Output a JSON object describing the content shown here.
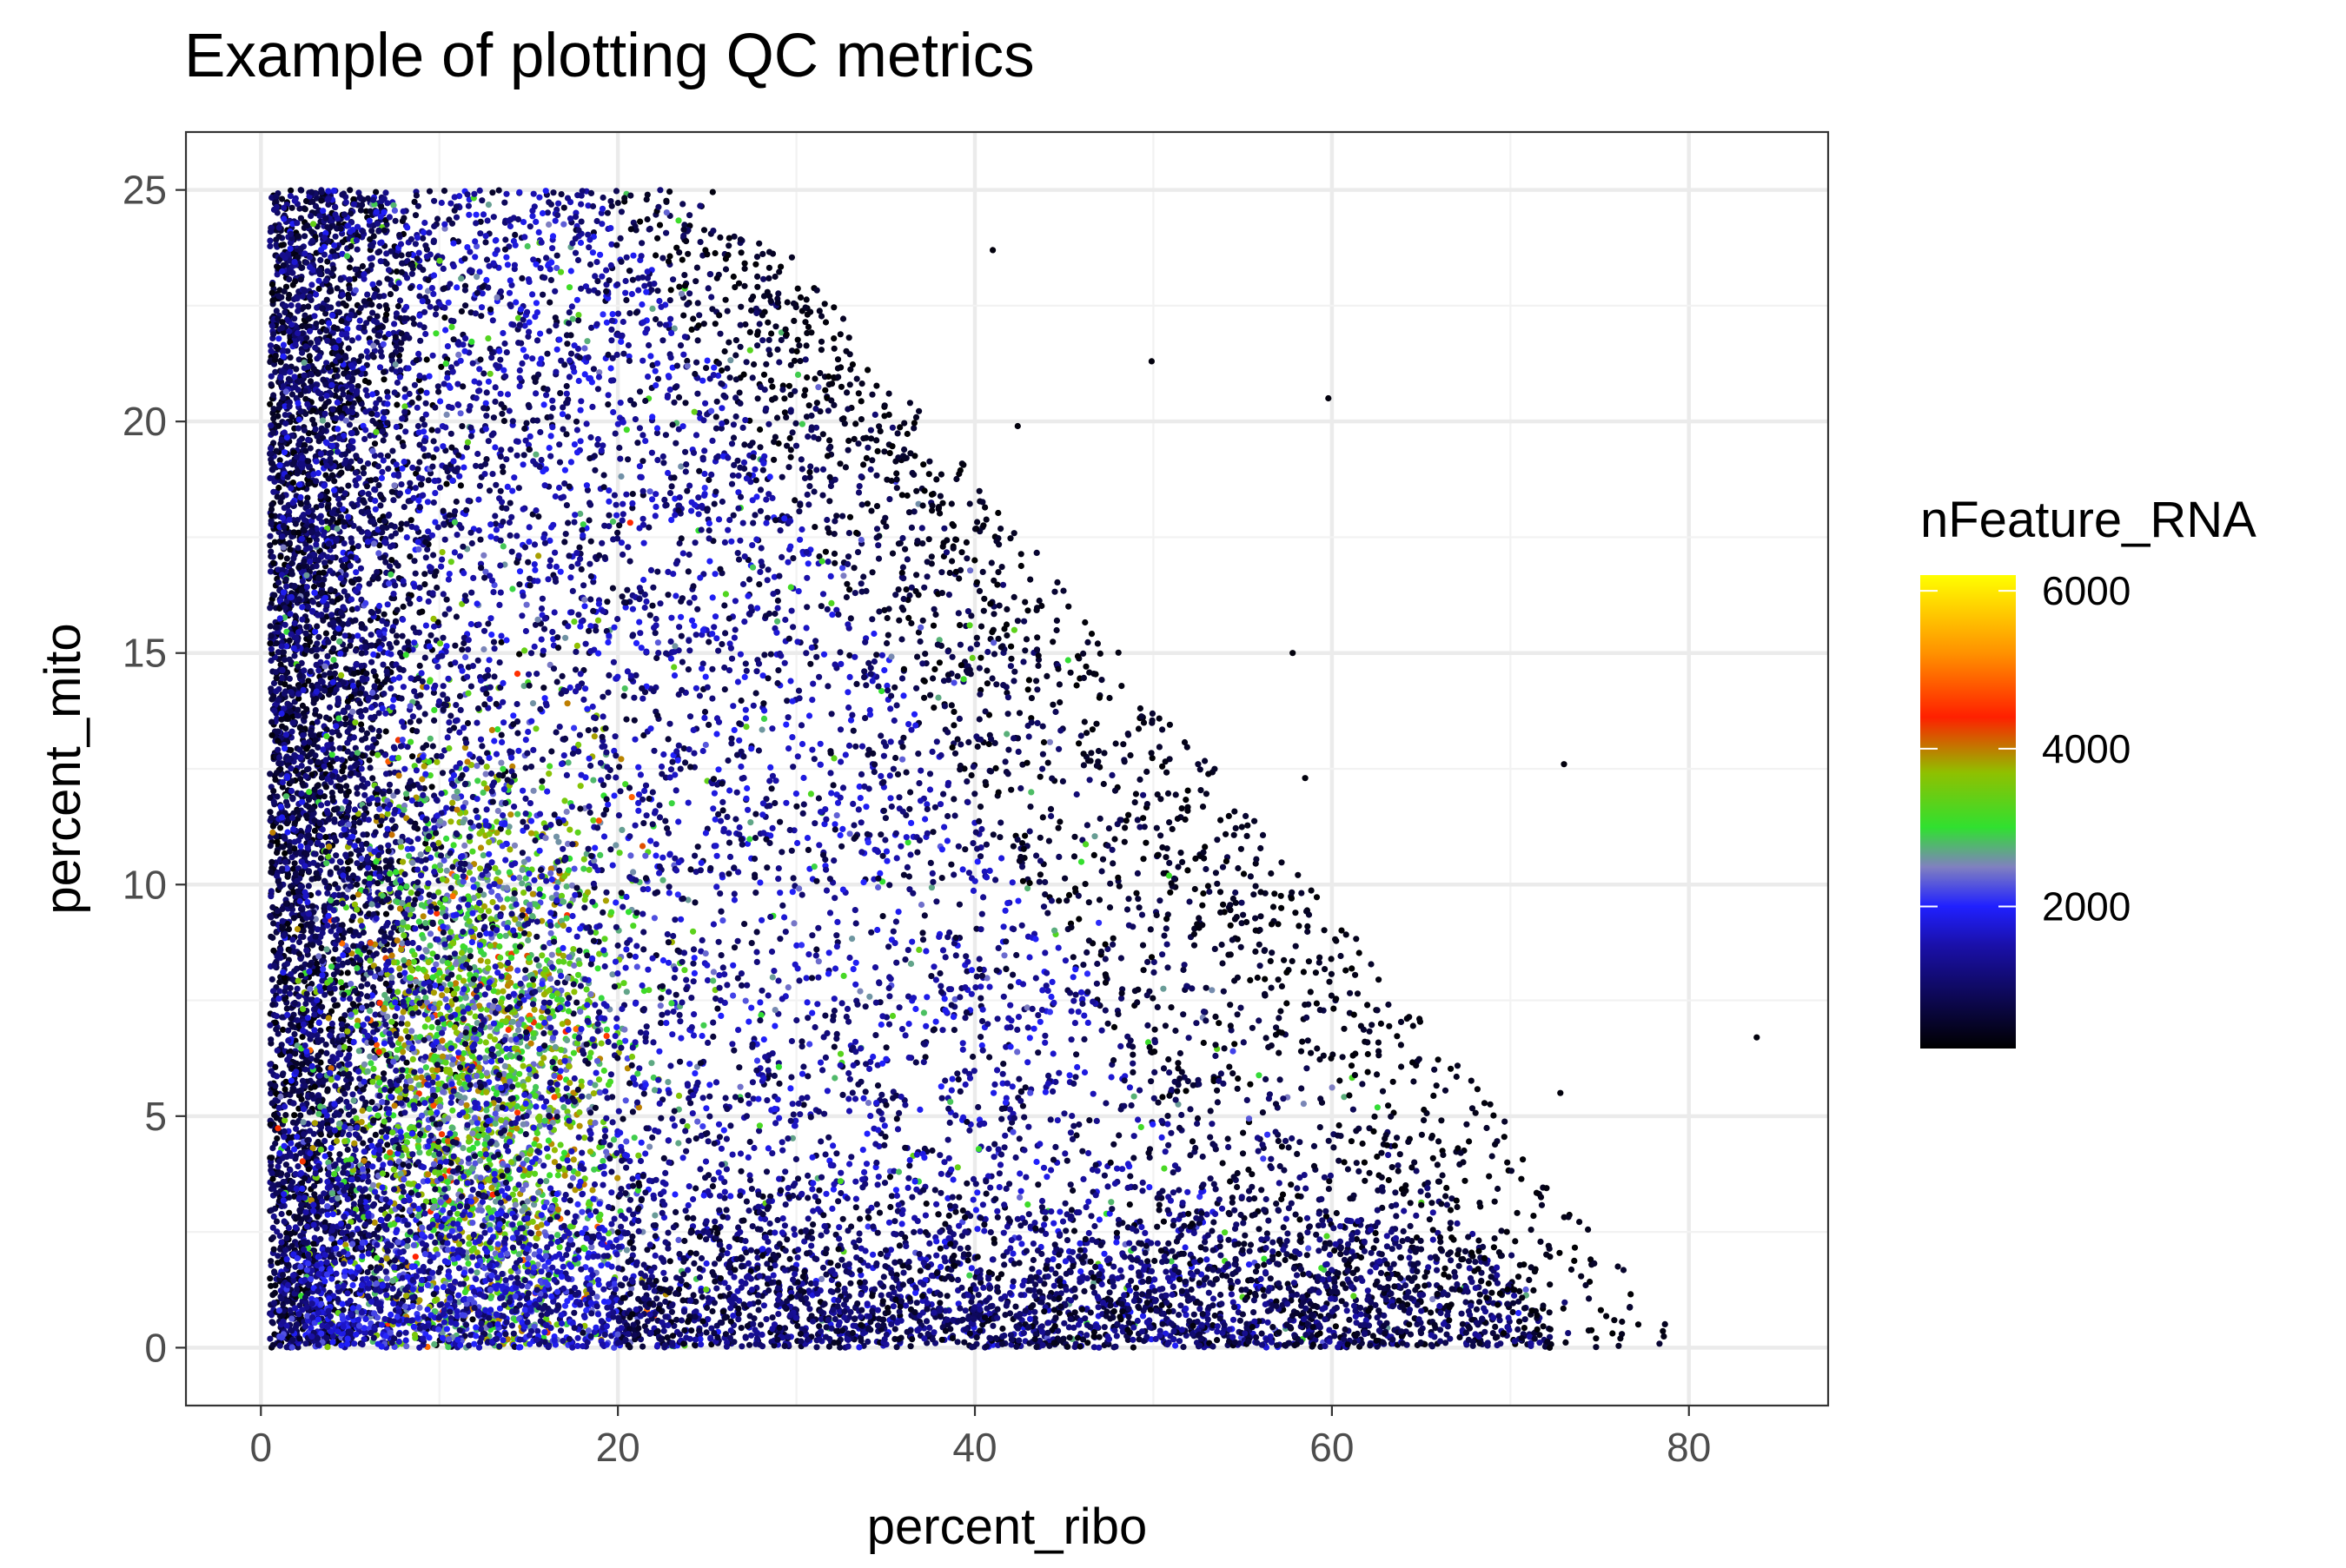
{
  "chart_data": {
    "type": "scatter",
    "title": "Example of plotting QC metrics",
    "xlabel": "percent_ribo",
    "ylabel": "percent_mito",
    "xlim": [
      -4.2,
      87.8
    ],
    "ylim": [
      -1.25,
      26.25
    ],
    "x_ticks": [
      0,
      20,
      40,
      60,
      80
    ],
    "y_ticks": [
      0,
      5,
      10,
      15,
      20,
      25
    ],
    "x_tick_labels": [
      "0",
      "20",
      "40",
      "60",
      "80"
    ],
    "y_tick_labels": [
      "0",
      "5",
      "10",
      "15",
      "20",
      "25"
    ],
    "grid": true,
    "theme": "bw",
    "color_by": "nFeature_RNA",
    "legend": {
      "title": "nFeature_RNA",
      "position": "right",
      "range": [
        200,
        6200
      ],
      "breaks": [
        2000,
        4000,
        6000
      ],
      "labels": [
        "2000",
        "4000",
        "6000"
      ],
      "gradient": [
        {
          "value": 200,
          "color": "#000000"
        },
        {
          "value": 1500,
          "color": "#1a10a8"
        },
        {
          "value": 2000,
          "color": "#2020ff"
        },
        {
          "value": 2500,
          "color": "#8080c0"
        },
        {
          "value": 3000,
          "color": "#30e030"
        },
        {
          "value": 3700,
          "color": "#90c000"
        },
        {
          "value": 4400,
          "color": "#ff2000"
        },
        {
          "value": 5200,
          "color": "#ff9000"
        },
        {
          "value": 6200,
          "color": "#ffff00"
        }
      ]
    },
    "outliers": [
      {
        "x": 49.9,
        "y": 21.3,
        "nFeature_RNA": 300
      },
      {
        "x": 59.8,
        "y": 20.5,
        "nFeature_RNA": 300
      },
      {
        "x": 57.8,
        "y": 15.0,
        "nFeature_RNA": 300
      },
      {
        "x": 73.0,
        "y": 12.6,
        "nFeature_RNA": 300
      },
      {
        "x": 58.5,
        "y": 12.3,
        "nFeature_RNA": 300
      },
      {
        "x": 83.8,
        "y": 6.7,
        "nFeature_RNA": 300
      },
      {
        "x": 72.8,
        "y": 5.5,
        "nFeature_RNA": 300
      },
      {
        "x": 74.8,
        "y": 0.2,
        "nFeature_RNA": 300
      },
      {
        "x": 41.0,
        "y": 23.7,
        "nFeature_RNA": 300
      },
      {
        "x": 42.4,
        "y": 19.9,
        "nFeature_RNA": 300
      },
      {
        "x": 64.9,
        "y": 7.1,
        "nFeature_RNA": 300
      },
      {
        "x": 68.8,
        "y": 3.7,
        "nFeature_RNA": 300
      },
      {
        "x": 69.8,
        "y": 2.5,
        "nFeature_RNA": 300
      },
      {
        "x": 68.2,
        "y": 1.7,
        "nFeature_RNA": 300
      },
      {
        "x": 71.5,
        "y": 0.7,
        "nFeature_RNA": 300
      },
      {
        "x": 72.2,
        "y": 0.0,
        "nFeature_RNA": 300
      },
      {
        "x": 57.2,
        "y": 6.8,
        "nFeature_RNA": 300
      },
      {
        "x": 60.4,
        "y": 4.8,
        "nFeature_RNA": 300
      }
    ]
  }
}
